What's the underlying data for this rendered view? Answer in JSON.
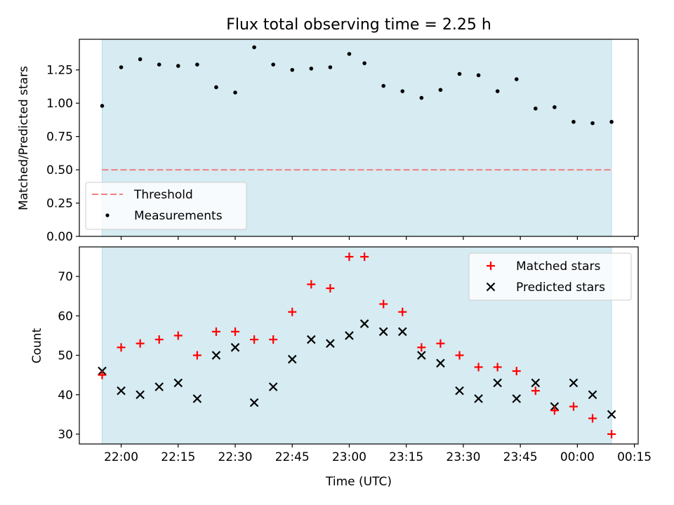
{
  "figure": {
    "title": "Flux total observing time = 2.25 h"
  },
  "colors": {
    "span_fill": "#add8e6",
    "threshold": "#f08080",
    "measurement": "#000000",
    "matched": "#ff0000",
    "predicted": "#000000"
  },
  "chart_data": [
    {
      "type": "scatter",
      "title": "Flux total observing time = 2.25 h",
      "xlabel": "",
      "ylabel": "Matched/Predicted stars",
      "xlim": [
        "21:49",
        "00:16"
      ],
      "ylim": [
        0,
        1.48
      ],
      "x_ticks": [
        "22:00",
        "22:15",
        "22:30",
        "22:45",
        "23:00",
        "23:15",
        "23:30",
        "23:45",
        "00:00",
        "00:15"
      ],
      "x_tick_labels_visible": false,
      "y_ticks": [
        0,
        0.25,
        0.5,
        0.75,
        1.0,
        1.25
      ],
      "y_tick_labels": [
        "0.00",
        "0.25",
        "0.50",
        "0.75",
        "1.00",
        "1.25"
      ],
      "grid": false,
      "legend": {
        "position": "lower-left",
        "entries": [
          "Threshold",
          "Measurements"
        ]
      },
      "shaded_span": [
        "21:55",
        "00:09"
      ],
      "threshold": {
        "name": "Threshold",
        "value": 0.5,
        "style": "dashed"
      },
      "series": [
        {
          "name": "Measurements",
          "marker": "dot",
          "x": [
            "21:55",
            "22:00",
            "22:05",
            "22:10",
            "22:15",
            "22:20",
            "22:25",
            "22:30",
            "22:35",
            "22:40",
            "22:45",
            "22:50",
            "22:55",
            "23:00",
            "23:04",
            "23:09",
            "23:14",
            "23:19",
            "23:24",
            "23:29",
            "23:34",
            "23:39",
            "23:44",
            "23:49",
            "23:54",
            "23:59",
            "00:04",
            "00:09"
          ],
          "y": [
            0.98,
            1.27,
            1.33,
            1.29,
            1.28,
            1.29,
            1.12,
            1.08,
            1.42,
            1.29,
            1.25,
            1.26,
            1.27,
            1.37,
            1.3,
            1.13,
            1.09,
            1.04,
            1.1,
            1.22,
            1.21,
            1.09,
            1.18,
            0.96,
            0.97,
            0.86,
            0.85,
            0.86
          ]
        }
      ]
    },
    {
      "type": "scatter",
      "title": "",
      "xlabel": "Time (UTC)",
      "ylabel": "Count",
      "xlim": [
        "21:49",
        "00:16"
      ],
      "ylim": [
        27.5,
        77.5
      ],
      "x_ticks": [
        "22:00",
        "22:15",
        "22:30",
        "22:45",
        "23:00",
        "23:15",
        "23:30",
        "23:45",
        "00:00",
        "00:15"
      ],
      "y_ticks": [
        30,
        40,
        50,
        60,
        70
      ],
      "grid": false,
      "legend": {
        "position": "top-right",
        "entries": [
          "Matched stars",
          "Predicted stars"
        ]
      },
      "shaded_span": [
        "21:55",
        "00:09"
      ],
      "series": [
        {
          "name": "Matched stars",
          "marker": "plus",
          "x": [
            "21:55",
            "22:00",
            "22:05",
            "22:10",
            "22:15",
            "22:20",
            "22:25",
            "22:30",
            "22:35",
            "22:40",
            "22:45",
            "22:50",
            "22:55",
            "23:00",
            "23:04",
            "23:09",
            "23:14",
            "23:19",
            "23:24",
            "23:29",
            "23:34",
            "23:39",
            "23:44",
            "23:49",
            "23:54",
            "23:59",
            "00:04",
            "00:09"
          ],
          "y": [
            45,
            52,
            53,
            54,
            55,
            50,
            56,
            56,
            54,
            54,
            61,
            68,
            67,
            75,
            75,
            63,
            61,
            52,
            53,
            50,
            47,
            47,
            46,
            41,
            36,
            37,
            34,
            30
          ]
        },
        {
          "name": "Predicted stars",
          "marker": "x",
          "x": [
            "21:55",
            "22:00",
            "22:05",
            "22:10",
            "22:15",
            "22:20",
            "22:25",
            "22:30",
            "22:35",
            "22:40",
            "22:45",
            "22:50",
            "22:55",
            "23:00",
            "23:04",
            "23:09",
            "23:14",
            "23:19",
            "23:24",
            "23:29",
            "23:34",
            "23:39",
            "23:44",
            "23:49",
            "23:54",
            "23:59",
            "00:04",
            "00:09"
          ],
          "y": [
            46,
            41,
            40,
            42,
            43,
            39,
            50,
            52,
            38,
            42,
            49,
            54,
            53,
            55,
            58,
            56,
            56,
            50,
            48,
            41,
            39,
            43,
            39,
            43,
            37,
            43,
            40,
            35
          ]
        }
      ]
    }
  ]
}
